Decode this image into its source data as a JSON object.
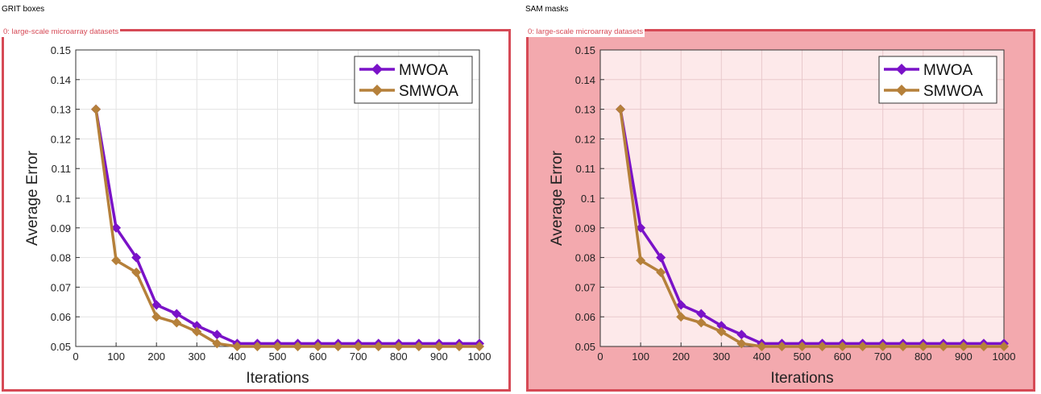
{
  "panels": {
    "left_title": "GRIT boxes",
    "right_title": "SAM masks",
    "box_label": "0: large-scale microarray datasets"
  },
  "colors": {
    "mwoa": "#7a12c8",
    "smwoa": "#b5803a",
    "box_outline": "#d64a56",
    "mask_fill": "#f3a9ae"
  },
  "chart_data": {
    "type": "line",
    "xlabel": "Iterations",
    "ylabel": "Average Error",
    "xlim": [
      0,
      1000
    ],
    "ylim": [
      0.05,
      0.15
    ],
    "xticks": [
      "0",
      "100",
      "200",
      "300",
      "400",
      "500",
      "600",
      "700",
      "800",
      "900",
      "1000"
    ],
    "yticks": [
      "0.05",
      "0.06",
      "0.07",
      "0.08",
      "0.09",
      "0.1",
      "0.11",
      "0.12",
      "0.13",
      "0.14",
      "0.15"
    ],
    "grid": true,
    "legend": "top-right",
    "x": [
      50,
      100,
      150,
      200,
      250,
      300,
      350,
      400,
      450,
      500,
      550,
      600,
      650,
      700,
      750,
      800,
      850,
      900,
      950,
      1000
    ],
    "series": [
      {
        "name": "MWOA",
        "color": "#7a12c8",
        "values": [
          0.13,
          0.09,
          0.08,
          0.064,
          0.061,
          0.057,
          0.054,
          0.051,
          0.051,
          0.051,
          0.051,
          0.051,
          0.051,
          0.051,
          0.051,
          0.051,
          0.051,
          0.051,
          0.051,
          0.051
        ]
      },
      {
        "name": "SMWOA",
        "color": "#b5803a",
        "values": [
          0.13,
          0.079,
          0.075,
          0.06,
          0.058,
          0.055,
          0.051,
          0.05,
          0.05,
          0.05,
          0.05,
          0.05,
          0.05,
          0.05,
          0.05,
          0.05,
          0.05,
          0.05,
          0.05,
          0.05
        ]
      }
    ]
  }
}
